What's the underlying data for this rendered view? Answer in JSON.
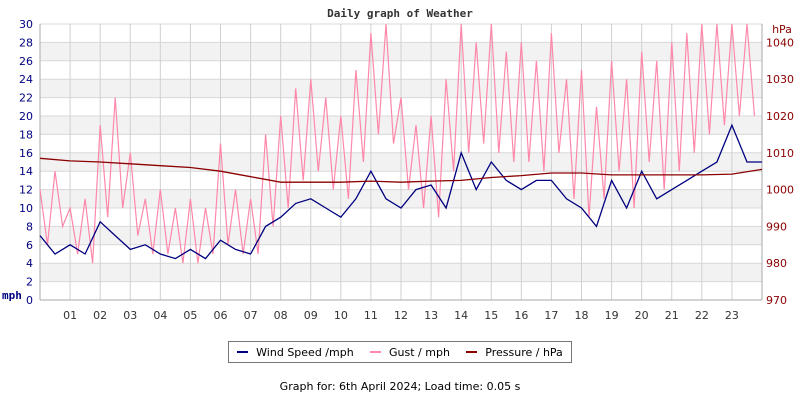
{
  "chart_data": {
    "type": "line",
    "title": "Daily graph of Weather",
    "xlabel": "",
    "ylabel": "mph",
    "ylabel_right": "hPa",
    "xlim": [
      0,
      24
    ],
    "ylim": [
      0,
      30
    ],
    "ylim_right": [
      970,
      1045
    ],
    "x_ticks": [
      "01",
      "02",
      "03",
      "04",
      "05",
      "06",
      "07",
      "08",
      "09",
      "10",
      "11",
      "12",
      "13",
      "14",
      "15",
      "16",
      "17",
      "18",
      "19",
      "20",
      "21",
      "22",
      "23"
    ],
    "y_ticks": [
      "0",
      "2",
      "4",
      "6",
      "8",
      "10",
      "12",
      "14",
      "16",
      "18",
      "20",
      "22",
      "24",
      "26",
      "28",
      "30"
    ],
    "y_ticks_right": [
      "970",
      "980",
      "990",
      "1000",
      "1010",
      "1020",
      "1030",
      "1040"
    ],
    "grid": true,
    "legend_position": "bottom",
    "series": [
      {
        "name": "Wind Speed /mph",
        "color": "#000080",
        "axis": "left",
        "x_step_hours": 0.5,
        "values": [
          7,
          5,
          6,
          5,
          8.5,
          7,
          5.5,
          6,
          5,
          4.5,
          5.5,
          4.5,
          6.5,
          5.5,
          5,
          8,
          9,
          10.5,
          11,
          10,
          9,
          11,
          14,
          11,
          10,
          12,
          12.5,
          10,
          16,
          12,
          15,
          13,
          12,
          13,
          13,
          11,
          10,
          8,
          13,
          10,
          14,
          11,
          12,
          13,
          14,
          15,
          19,
          15,
          15
        ]
      },
      {
        "name": "Gust / mph",
        "color": "#ff88aa",
        "axis": "left",
        "x_step_hours": 0.25,
        "values": [
          12,
          6,
          14,
          8,
          10,
          5,
          11,
          4,
          19,
          9,
          22,
          10,
          16,
          7,
          11,
          5,
          12,
          5,
          10,
          4,
          11,
          4,
          10,
          5,
          17,
          6,
          12,
          5,
          11,
          5,
          18,
          8,
          20,
          10,
          23,
          13,
          24,
          14,
          22,
          12,
          20,
          11,
          25,
          15,
          29,
          18,
          30,
          17,
          22,
          12,
          19,
          10,
          20,
          9,
          24,
          14,
          30,
          16,
          28,
          17,
          30,
          16,
          27,
          15,
          28,
          15,
          26,
          14,
          29,
          16,
          24,
          11,
          25,
          9,
          21,
          11,
          26,
          14,
          24,
          10,
          27,
          15,
          26,
          12,
          28,
          14,
          29,
          16,
          30,
          18,
          30,
          19,
          30,
          20,
          30,
          20
        ]
      },
      {
        "name": "Pressure / hPa",
        "color": "#8b0000",
        "axis": "right",
        "x_step_hours": 1,
        "values": [
          1008.5,
          1007.8,
          1007.5,
          1007,
          1006.5,
          1006,
          1005,
          1003.5,
          1002,
          1002,
          1002,
          1002.3,
          1002,
          1002.3,
          1002.5,
          1003.3,
          1003.8,
          1004.5,
          1004.5,
          1004,
          1004,
          1004,
          1004,
          1004.2,
          1005.5
        ]
      }
    ]
  },
  "footer": "Graph for: 6th April 2024; Load time: 0.05 s"
}
